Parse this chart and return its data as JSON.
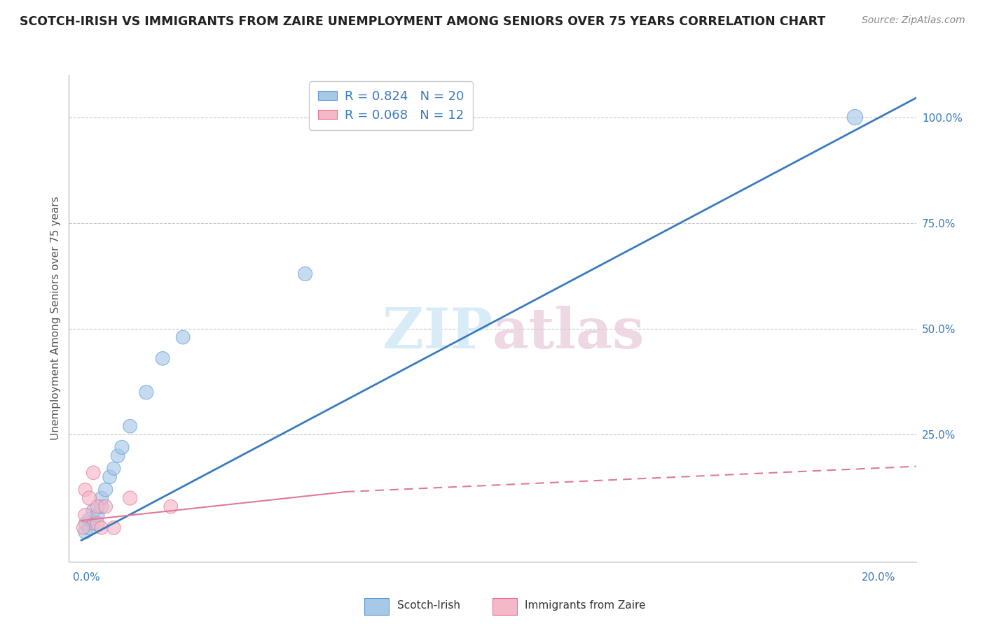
{
  "title": "SCOTCH-IRISH VS IMMIGRANTS FROM ZAIRE UNEMPLOYMENT AMONG SENIORS OVER 75 YEARS CORRELATION CHART",
  "source": "Source: ZipAtlas.com",
  "ylabel": "Unemployment Among Seniors over 75 years",
  "legend1_label": "Scotch-Irish",
  "legend2_label": "Immigrants from Zaire",
  "r1": 0.824,
  "n1": 20,
  "r2": 0.068,
  "n2": 12,
  "blue_fill": "#a8c8e8",
  "blue_edge": "#5b9bd5",
  "pink_fill": "#f4b8c8",
  "pink_edge": "#e87090",
  "blue_line_color": "#3a7bbf",
  "pink_line_color": "#e07898",
  "legend_r_color": "#3a7bbf",
  "legend_n_color": "#3a7bbf",
  "watermark_color": "#d8ecf8",
  "scotch_irish_x": [
    0.001,
    0.001,
    0.002,
    0.002,
    0.003,
    0.003,
    0.004,
    0.005,
    0.005,
    0.006,
    0.007,
    0.008,
    0.009,
    0.01,
    0.012,
    0.016,
    0.02,
    0.025,
    0.055,
    0.19
  ],
  "scotch_irish_y": [
    0.02,
    0.04,
    0.03,
    0.05,
    0.04,
    0.07,
    0.06,
    0.08,
    0.1,
    0.12,
    0.15,
    0.17,
    0.2,
    0.22,
    0.27,
    0.35,
    0.43,
    0.48,
    0.63,
    1.0
  ],
  "scotch_size": [
    200,
    180,
    220,
    200,
    190,
    210,
    200,
    220,
    200,
    210,
    200,
    190,
    200,
    210,
    200,
    210,
    200,
    200,
    210,
    260
  ],
  "zaire_x": [
    0.0005,
    0.001,
    0.001,
    0.002,
    0.003,
    0.004,
    0.004,
    0.005,
    0.006,
    0.008,
    0.012,
    0.022
  ],
  "zaire_y": [
    0.03,
    0.06,
    0.12,
    0.1,
    0.16,
    0.08,
    0.04,
    0.03,
    0.08,
    0.03,
    0.1,
    0.08
  ],
  "zaire_size": [
    180,
    200,
    190,
    210,
    200,
    190,
    200,
    190,
    200,
    200,
    210,
    200
  ],
  "xlim": [
    -0.003,
    0.205
  ],
  "ylim": [
    -0.05,
    1.1
  ],
  "ytick_vals": [
    0.25,
    0.5,
    0.75,
    1.0
  ],
  "ytick_labels": [
    "25.0%",
    "50.0%",
    "75.0%",
    "100.0%"
  ]
}
